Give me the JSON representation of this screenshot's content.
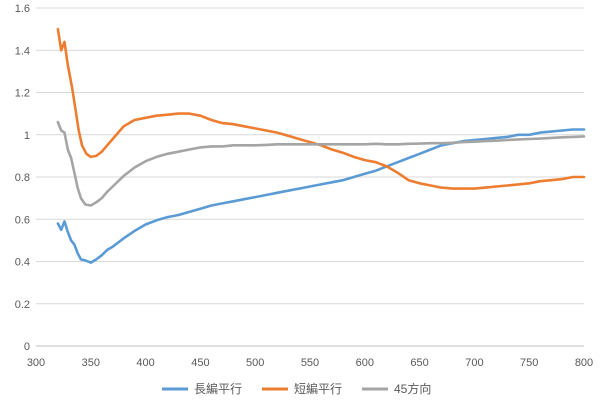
{
  "chart_data": {
    "type": "line",
    "title": "",
    "xlabel": "",
    "ylabel": "",
    "xlim": [
      300,
      800
    ],
    "ylim": [
      0,
      1.6
    ],
    "x_ticks": [
      300,
      350,
      400,
      450,
      500,
      550,
      600,
      650,
      700,
      750,
      800
    ],
    "x_tick_labels": [
      "300",
      "350",
      "400",
      "450",
      "500",
      "550",
      "600",
      "650",
      "700",
      "750",
      "800"
    ],
    "y_ticks": [
      0,
      0.2,
      0.4,
      0.6,
      0.8,
      1.0,
      1.2,
      1.4,
      1.6
    ],
    "y_tick_labels": [
      "0",
      "0.2",
      "0.4",
      "0.6",
      "0.8",
      "1",
      "1.2",
      "1.4",
      "1.6"
    ],
    "grid": "horizontal",
    "legend_position": "bottom",
    "series": [
      {
        "name": "長編平行",
        "color": "#5b9bd5",
        "points": [
          [
            320,
            0.58
          ],
          [
            323,
            0.55
          ],
          [
            326,
            0.59
          ],
          [
            329,
            0.54
          ],
          [
            332,
            0.5
          ],
          [
            335,
            0.48
          ],
          [
            338,
            0.44
          ],
          [
            341,
            0.41
          ],
          [
            345,
            0.405
          ],
          [
            350,
            0.395
          ],
          [
            355,
            0.41
          ],
          [
            360,
            0.43
          ],
          [
            365,
            0.455
          ],
          [
            370,
            0.47
          ],
          [
            375,
            0.49
          ],
          [
            380,
            0.51
          ],
          [
            390,
            0.545
          ],
          [
            400,
            0.575
          ],
          [
            410,
            0.595
          ],
          [
            420,
            0.61
          ],
          [
            430,
            0.62
          ],
          [
            440,
            0.635
          ],
          [
            450,
            0.65
          ],
          [
            460,
            0.665
          ],
          [
            470,
            0.675
          ],
          [
            480,
            0.685
          ],
          [
            490,
            0.695
          ],
          [
            500,
            0.705
          ],
          [
            510,
            0.715
          ],
          [
            520,
            0.725
          ],
          [
            530,
            0.735
          ],
          [
            540,
            0.745
          ],
          [
            550,
            0.755
          ],
          [
            560,
            0.765
          ],
          [
            570,
            0.775
          ],
          [
            580,
            0.785
          ],
          [
            590,
            0.8
          ],
          [
            600,
            0.815
          ],
          [
            610,
            0.83
          ],
          [
            620,
            0.85
          ],
          [
            630,
            0.87
          ],
          [
            640,
            0.89
          ],
          [
            650,
            0.91
          ],
          [
            660,
            0.93
          ],
          [
            670,
            0.95
          ],
          [
            680,
            0.96
          ],
          [
            690,
            0.97
          ],
          [
            700,
            0.975
          ],
          [
            710,
            0.98
          ],
          [
            720,
            0.985
          ],
          [
            730,
            0.99
          ],
          [
            740,
            1.0
          ],
          [
            750,
            1.0
          ],
          [
            760,
            1.01
          ],
          [
            770,
            1.015
          ],
          [
            780,
            1.02
          ],
          [
            790,
            1.025
          ],
          [
            800,
            1.025
          ]
        ]
      },
      {
        "name": "短編平行",
        "color": "#ed7d31",
        "points": [
          [
            320,
            1.5
          ],
          [
            323,
            1.4
          ],
          [
            326,
            1.44
          ],
          [
            329,
            1.33
          ],
          [
            333,
            1.22
          ],
          [
            336,
            1.12
          ],
          [
            339,
            1.02
          ],
          [
            342,
            0.95
          ],
          [
            346,
            0.91
          ],
          [
            350,
            0.895
          ],
          [
            355,
            0.9
          ],
          [
            360,
            0.92
          ],
          [
            365,
            0.95
          ],
          [
            370,
            0.98
          ],
          [
            375,
            1.01
          ],
          [
            380,
            1.04
          ],
          [
            390,
            1.07
          ],
          [
            400,
            1.08
          ],
          [
            410,
            1.09
          ],
          [
            420,
            1.095
          ],
          [
            430,
            1.1
          ],
          [
            440,
            1.1
          ],
          [
            450,
            1.09
          ],
          [
            460,
            1.07
          ],
          [
            470,
            1.055
          ],
          [
            480,
            1.05
          ],
          [
            490,
            1.04
          ],
          [
            500,
            1.03
          ],
          [
            510,
            1.02
          ],
          [
            520,
            1.01
          ],
          [
            530,
            0.995
          ],
          [
            540,
            0.98
          ],
          [
            550,
            0.965
          ],
          [
            560,
            0.95
          ],
          [
            570,
            0.93
          ],
          [
            580,
            0.915
          ],
          [
            590,
            0.895
          ],
          [
            600,
            0.88
          ],
          [
            610,
            0.87
          ],
          [
            620,
            0.85
          ],
          [
            630,
            0.82
          ],
          [
            640,
            0.785
          ],
          [
            650,
            0.77
          ],
          [
            660,
            0.76
          ],
          [
            670,
            0.75
          ],
          [
            680,
            0.745
          ],
          [
            690,
            0.745
          ],
          [
            700,
            0.745
          ],
          [
            710,
            0.75
          ],
          [
            720,
            0.755
          ],
          [
            730,
            0.76
          ],
          [
            740,
            0.765
          ],
          [
            750,
            0.77
          ],
          [
            760,
            0.78
          ],
          [
            770,
            0.785
          ],
          [
            780,
            0.79
          ],
          [
            790,
            0.8
          ],
          [
            800,
            0.8
          ]
        ]
      },
      {
        "name": "45方向",
        "color": "#a5a5a5",
        "points": [
          [
            320,
            1.06
          ],
          [
            323,
            1.02
          ],
          [
            326,
            1.01
          ],
          [
            329,
            0.93
          ],
          [
            332,
            0.89
          ],
          [
            335,
            0.82
          ],
          [
            338,
            0.75
          ],
          [
            341,
            0.7
          ],
          [
            345,
            0.67
          ],
          [
            350,
            0.665
          ],
          [
            355,
            0.68
          ],
          [
            360,
            0.7
          ],
          [
            365,
            0.73
          ],
          [
            370,
            0.755
          ],
          [
            375,
            0.78
          ],
          [
            380,
            0.805
          ],
          [
            390,
            0.845
          ],
          [
            400,
            0.875
          ],
          [
            410,
            0.895
          ],
          [
            420,
            0.91
          ],
          [
            430,
            0.92
          ],
          [
            440,
            0.93
          ],
          [
            450,
            0.94
          ],
          [
            460,
            0.945
          ],
          [
            470,
            0.945
          ],
          [
            480,
            0.95
          ],
          [
            490,
            0.95
          ],
          [
            500,
            0.95
          ],
          [
            510,
            0.952
          ],
          [
            520,
            0.955
          ],
          [
            530,
            0.955
          ],
          [
            540,
            0.955
          ],
          [
            550,
            0.955
          ],
          [
            560,
            0.955
          ],
          [
            570,
            0.955
          ],
          [
            580,
            0.955
          ],
          [
            590,
            0.955
          ],
          [
            600,
            0.955
          ],
          [
            610,
            0.957
          ],
          [
            620,
            0.955
          ],
          [
            630,
            0.955
          ],
          [
            640,
            0.957
          ],
          [
            650,
            0.958
          ],
          [
            660,
            0.96
          ],
          [
            670,
            0.96
          ],
          [
            680,
            0.962
          ],
          [
            690,
            0.965
          ],
          [
            700,
            0.967
          ],
          [
            710,
            0.97
          ],
          [
            720,
            0.972
          ],
          [
            730,
            0.975
          ],
          [
            740,
            0.978
          ],
          [
            750,
            0.98
          ],
          [
            760,
            0.982
          ],
          [
            770,
            0.985
          ],
          [
            780,
            0.988
          ],
          [
            790,
            0.99
          ],
          [
            800,
            0.992
          ]
        ]
      }
    ]
  }
}
